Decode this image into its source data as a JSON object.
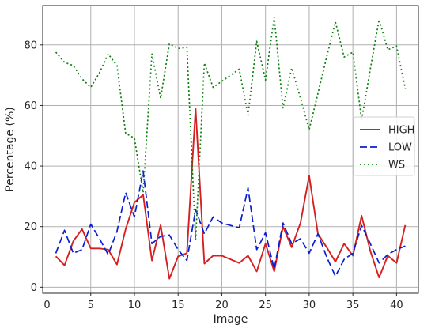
{
  "chart_data": {
    "type": "line",
    "title": "",
    "xlabel": "Image",
    "ylabel": "Percentage (%)",
    "xlim": [
      -0.5,
      42.5
    ],
    "ylim": [
      -2,
      93
    ],
    "xticks": [
      0,
      5,
      10,
      15,
      20,
      25,
      30,
      35,
      40
    ],
    "yticks": [
      0,
      20,
      40,
      60,
      80
    ],
    "grid": true,
    "legend_position": "center-right",
    "x": [
      1,
      2,
      3,
      4,
      5,
      6,
      7,
      8,
      9,
      10,
      11,
      12,
      13,
      14,
      15,
      16,
      17,
      18,
      19,
      20,
      21,
      22,
      23,
      24,
      25,
      26,
      27,
      28,
      29,
      30,
      31,
      32,
      33,
      34,
      35,
      36,
      37,
      38,
      39,
      40,
      41
    ],
    "series": [
      {
        "name": "HIGH",
        "color": "#d62020",
        "line_style": "solid",
        "values": [
          10.2,
          7.2,
          15.2,
          19.2,
          12.8,
          12.8,
          12.4,
          7.5,
          19.2,
          28.0,
          30.5,
          8.8,
          20.5,
          2.8,
          10.2,
          11.2,
          59.0,
          7.8,
          10.4,
          10.4,
          9.2,
          8.0,
          10.4,
          5.2,
          14.4,
          5.2,
          20.0,
          13.2,
          21.2,
          36.8,
          17.6,
          13.2,
          8.4,
          14.4,
          10.4,
          23.6,
          12.0,
          3.2,
          10.4,
          8.0,
          20.5
        ]
      },
      {
        "name": "LOW",
        "color": "#0a1fd1",
        "line_style": "dashed",
        "values": [
          11.2,
          18.8,
          11.2,
          12.4,
          20.8,
          16.0,
          10.8,
          18.4,
          31.2,
          23.2,
          38.4,
          14.4,
          16.8,
          17.2,
          12.4,
          8.8,
          25.6,
          17.6,
          23.2,
          21.2,
          20.4,
          19.6,
          32.8,
          12.4,
          18.0,
          6.0,
          21.2,
          14.4,
          16.0,
          11.2,
          17.6,
          10.0,
          3.6,
          9.2,
          11.2,
          20.4,
          14.4,
          8.0,
          10.8,
          12.4,
          13.6
        ]
      },
      {
        "name": "WS",
        "color": "#0f800f",
        "line_style": "dotted",
        "values": [
          77.6,
          74.2,
          73.2,
          68.8,
          66.0,
          70.8,
          77.0,
          73.2,
          50.8,
          49.2,
          31.2,
          77.0,
          62.4,
          80.4,
          78.8,
          79.2,
          15.6,
          74.0,
          66.0,
          68.0,
          70.0,
          72.0,
          56.8,
          81.2,
          68.4,
          89.2,
          59.2,
          72.4,
          62.4,
          52.0,
          64.0,
          76.0,
          87.6,
          76.0,
          77.6,
          55.2,
          72.0,
          88.4,
          78.4,
          79.6,
          65.6
        ]
      }
    ]
  }
}
